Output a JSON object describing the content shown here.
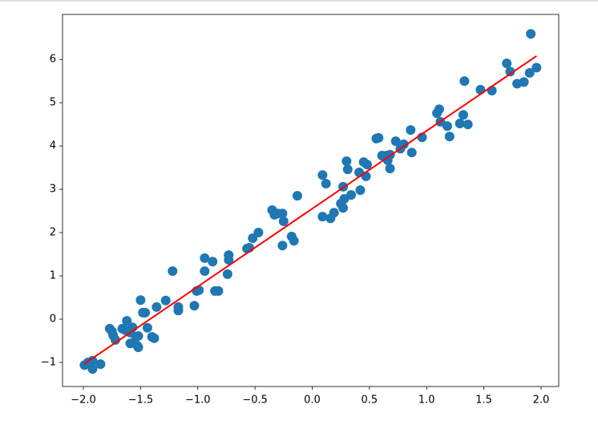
{
  "chart_data": {
    "type": "scatter",
    "x": [
      -1.99,
      -1.96,
      -1.92,
      -1.92,
      -1.85,
      -1.77,
      -1.75,
      -1.74,
      -1.72,
      -1.66,
      -1.65,
      -1.63,
      -1.62,
      -1.59,
      -1.59,
      -1.57,
      -1.54,
      -1.53,
      -1.52,
      -1.52,
      -1.5,
      -1.48,
      -1.46,
      -1.44,
      -1.4,
      -1.38,
      -1.36,
      -1.28,
      -1.22,
      -1.17,
      -1.17,
      -1.03,
      -1.01,
      -0.99,
      -0.94,
      -0.94,
      -0.87,
      -0.85,
      -0.82,
      -0.74,
      -0.73,
      -0.73,
      -0.57,
      -0.55,
      -0.52,
      -0.47,
      -0.35,
      -0.33,
      -0.3,
      -0.26,
      -0.26,
      -0.25,
      -0.18,
      -0.16,
      -0.13,
      0.09,
      0.09,
      0.12,
      0.16,
      0.19,
      0.25,
      0.27,
      0.27,
      0.28,
      0.3,
      0.31,
      0.34,
      0.41,
      0.42,
      0.45,
      0.47,
      0.48,
      0.56,
      0.58,
      0.61,
      0.65,
      0.66,
      0.68,
      0.68,
      0.73,
      0.77,
      0.8,
      0.87,
      0.86,
      0.96,
      1.09,
      1.11,
      1.12,
      1.18,
      1.2,
      1.29,
      1.32,
      1.33,
      1.36,
      1.47,
      1.57,
      1.7,
      1.73,
      1.79,
      1.85,
      1.9,
      1.91,
      1.96
    ],
    "values": [
      -1.06,
      -1.0,
      -1.15,
      -0.96,
      -1.04,
      -0.22,
      -0.28,
      -0.37,
      -0.48,
      -0.22,
      -0.22,
      -0.26,
      -0.04,
      -0.31,
      -0.56,
      -0.19,
      -0.41,
      -0.61,
      -0.65,
      -0.39,
      0.44,
      0.15,
      0.15,
      -0.2,
      -0.41,
      -0.44,
      0.28,
      0.43,
      1.11,
      0.2,
      0.28,
      0.31,
      0.65,
      0.67,
      1.41,
      1.11,
      1.33,
      0.65,
      0.65,
      1.04,
      1.37,
      1.48,
      1.63,
      1.65,
      1.87,
      2.0,
      2.52,
      2.41,
      2.44,
      1.7,
      2.44,
      2.26,
      1.91,
      1.81,
      2.85,
      3.33,
      2.37,
      3.13,
      2.33,
      2.46,
      2.67,
      2.57,
      3.06,
      2.78,
      3.65,
      3.46,
      2.87,
      3.39,
      2.98,
      3.63,
      3.3,
      3.57,
      4.17,
      4.19,
      3.78,
      3.78,
      3.67,
      3.48,
      3.8,
      4.11,
      3.94,
      4.04,
      3.85,
      4.37,
      4.2,
      4.76,
      4.85,
      4.56,
      4.46,
      4.22,
      4.52,
      4.72,
      5.5,
      4.5,
      5.3,
      5.28,
      5.91,
      5.72,
      5.44,
      5.48,
      5.69,
      6.59,
      5.81
    ],
    "color": "#1f77b4",
    "fit_line": {
      "x": [
        -1.99,
        1.96
      ],
      "values": [
        -1.03,
        6.08
      ],
      "color": "#ff0000"
    },
    "xlim": [
      -2.182,
      2.154
    ],
    "ylim": [
      -1.556,
      7.04
    ],
    "xticks": [
      {
        "value": -2,
        "label": "−2.0"
      },
      {
        "value": -1.5,
        "label": "−1.5"
      },
      {
        "value": -1,
        "label": "−1.0"
      },
      {
        "value": -0.5,
        "label": "−0.5"
      },
      {
        "value": 0,
        "label": "0.0"
      },
      {
        "value": 0.5,
        "label": "0.5"
      },
      {
        "value": 1,
        "label": "1.0"
      },
      {
        "value": 1.5,
        "label": "1.5"
      },
      {
        "value": 2,
        "label": "2.0"
      }
    ],
    "yticks": [
      {
        "value": -1,
        "label": "−1"
      },
      0,
      1,
      2,
      3,
      4,
      5,
      6
    ],
    "grid": false
  }
}
